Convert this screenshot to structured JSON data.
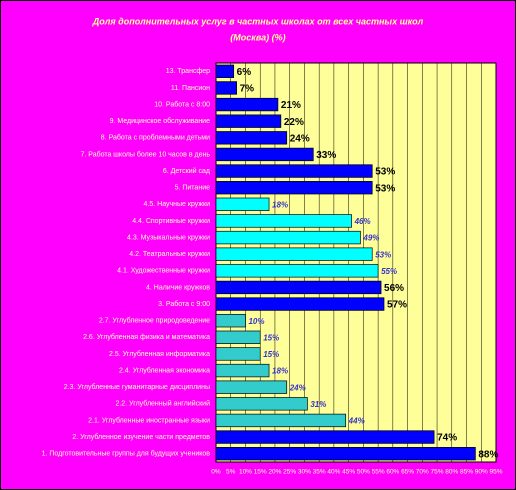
{
  "chart_data": {
    "type": "barh",
    "title": "Доля дополнительных услуг в частных школах от всех частных школ",
    "subtitle": "(Москва) (%)",
    "categories": [
      "13. Трансфер",
      "11. Пансион",
      "10. Работа с 8:00",
      "9. Медицинское обслуживание",
      "8. Работа с проблемными детьми",
      "7. Работа школы более 10 часов в день",
      "6. Детский сад",
      "5. Питание",
      "4.5. Научные кружки",
      "4.4. Спортивные кружки",
      "4.3. Музыкальные кружки",
      "4.2. Театральные кружки",
      "4.1. Художественные кружки",
      "4. Наличие кружков",
      "3. Работа с 9:00",
      "2.7. Углубленное природоведение",
      "2.6. Углубленная физика и математика",
      "2.5. Углубленная информатика",
      "2.4. Углубленная экономика",
      "2.3. Углубленные гуманитарные дисциплины",
      "2.2. Углубленный английский",
      "2.1. Углубленные иностранные языки",
      "2. Углубленное изучение части предметов",
      "1. Подготовительные группы для будущих учеников"
    ],
    "values": [
      6,
      7,
      21,
      22,
      24,
      33,
      53,
      53,
      18,
      46,
      49,
      53,
      55,
      56,
      57,
      10,
      15,
      15,
      18,
      24,
      31,
      44,
      74,
      88
    ],
    "value_labels": [
      "6%",
      "7%",
      "21%",
      "22%",
      "24%",
      "33%",
      "53%",
      "53%",
      "18%",
      "46%",
      "49%",
      "53%",
      "55%",
      "56%",
      "57%",
      "10%",
      "15%",
      "15%",
      "18%",
      "24%",
      "31%",
      "44%",
      "74%",
      "88%"
    ],
    "colors": [
      "#0000ff",
      "#0000ff",
      "#0000ff",
      "#0000ff",
      "#0000ff",
      "#0000ff",
      "#0000ff",
      "#0000ff",
      "#00ffff",
      "#00ffff",
      "#00ffff",
      "#00ffff",
      "#00ffff",
      "#0000ff",
      "#0000ff",
      "#33cccc",
      "#33cccc",
      "#33cccc",
      "#33cccc",
      "#33cccc",
      "#33cccc",
      "#33cccc",
      "#0000ff",
      "#0000ff"
    ],
    "label_colors": [
      "#000000",
      "#000000",
      "#000000",
      "#000000",
      "#000000",
      "#000000",
      "#000000",
      "#000000",
      "#3333cc",
      "#3333cc",
      "#3333cc",
      "#3333cc",
      "#3333cc",
      "#000000",
      "#000000",
      "#3333cc",
      "#3333cc",
      "#3333cc",
      "#3333cc",
      "#3333cc",
      "#3333cc",
      "#3333cc",
      "#000000",
      "#000000"
    ],
    "plot_color": "#ffff99",
    "xlim": [
      0,
      95
    ],
    "xticks": [
      {
        "value": 0,
        "label": "0%"
      },
      {
        "value": 5,
        "label": "5%"
      },
      {
        "value": 10,
        "label": "10%"
      },
      {
        "value": 15,
        "label": "15%"
      },
      {
        "value": 20,
        "label": "20%"
      },
      {
        "value": 25,
        "label": "25%"
      },
      {
        "value": 30,
        "label": "30%"
      },
      {
        "value": 35,
        "label": "35%"
      },
      {
        "value": 40,
        "label": "40%"
      },
      {
        "value": 45,
        "label": "45%"
      },
      {
        "value": 50,
        "label": "50%"
      },
      {
        "value": 55,
        "label": "55%"
      },
      {
        "value": 60,
        "label": "60%"
      },
      {
        "value": 65,
        "label": "65%"
      },
      {
        "value": 70,
        "label": "70%"
      },
      {
        "value": 75,
        "label": "75%"
      },
      {
        "value": 80,
        "label": "80%"
      },
      {
        "value": 85,
        "label": "85%"
      },
      {
        "value": 90,
        "label": "90%"
      },
      {
        "value": 95,
        "label": "95%"
      }
    ],
    "grid": true
  }
}
